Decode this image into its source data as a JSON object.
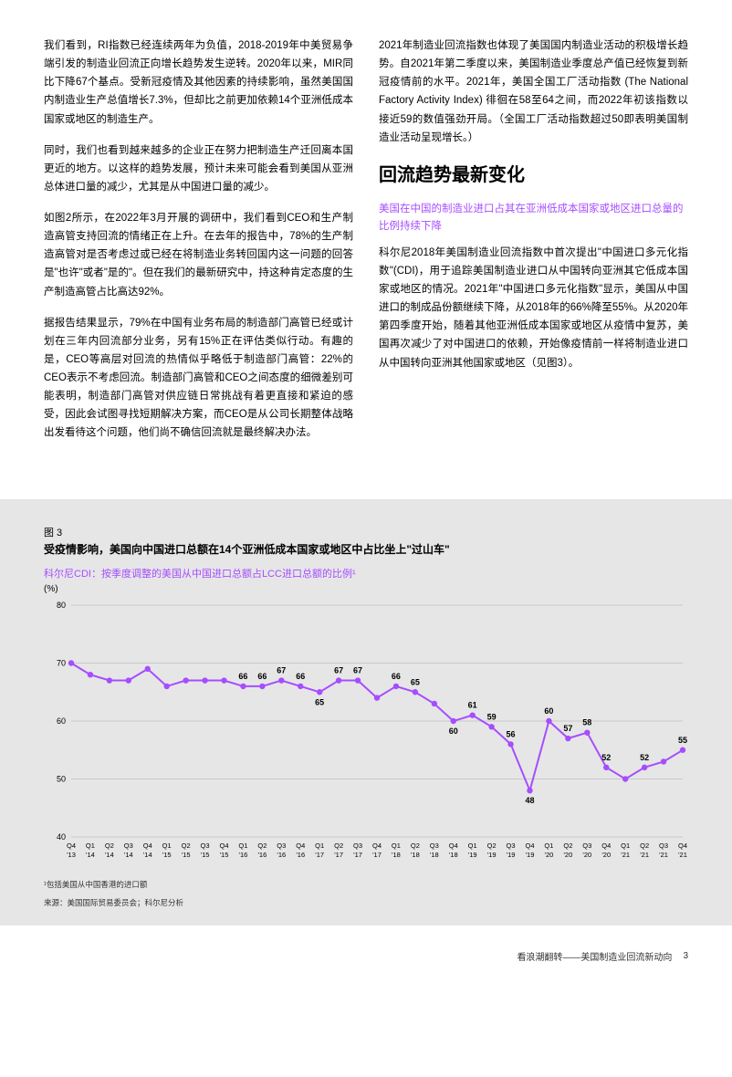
{
  "leftCol": {
    "p1": "我们看到，RI指数已经连续两年为负值，2018-2019年中美贸易争端引发的制造业回流正向增长趋势发生逆转。2020年以来，MIR同比下降67个基点。受新冠疫情及其他因素的持续影响，虽然美国国内制造业生产总值增长7.3%，但却比之前更加依赖14个亚洲低成本国家或地区的制造生产。",
    "p2": "同时，我们也看到越来越多的企业正在努力把制造生产迁回离本国更近的地方。以这样的趋势发展，预计未来可能会看到美国从亚洲总体进口量的减少，尤其是从中国进口量的减少。",
    "p3": "如图2所示，在2022年3月开展的调研中，我们看到CEO和生产制造高管支持回流的情绪正在上升。在去年的报告中，78%的生产制造高管对是否考虑过或已经在将制造业务转回国内这一问题的回答是\"也许\"或者\"是的\"。但在我们的最新研究中，持这种肯定态度的生产制造高管占比高达92%。",
    "p4": "据报告结果显示，79%在中国有业务布局的制造部门高管已经或计划在三年内回流部分业务，另有15%正在评估类似行动。有趣的是，CEO等高层对回流的热情似乎略低于制造部门高管：22%的CEO表示不考虑回流。制造部门高管和CEO之间态度的细微差别可能表明，制造部门高管对供应链日常挑战有着更直接和紧迫的感受，因此会试图寻找短期解决方案，而CEO是从公司长期整体战略出发看待这个问题，他们尚不确信回流就是最终解决办法。"
  },
  "rightCol": {
    "p1": "2021年制造业回流指数也体现了美国国内制造业活动的积极增长趋势。自2021年第二季度以来，美国制造业季度总产值已经恢复到新冠疫情前的水平。2021年，美国全国工厂活动指数 (The National Factory Activity Index) 徘徊在58至64之间，而2022年初该指数以接近59的数值强劲开局。（全国工厂活动指数超过50即表明美国制造业活动呈现增长。）",
    "h2": "回流趋势最新变化",
    "sub": "美国在中国的制造业进口占其在亚洲低成本国家或地区进口总量的比例持续下降",
    "p2": "科尔尼2018年美国制造业回流指数中首次提出\"中国进口多元化指数\"(CDI)，用于追踪美国制造业进口从中国转向亚洲其它低成本国家或地区的情况。2021年\"中国进口多元化指数\"显示，美国从中国进口的制成品份额继续下降，从2018年的66%降至55%。从2020年第四季度开始，随着其他亚洲低成本国家或地区从疫情中复苏，美国再次减少了对中国进口的依赖，开始像疫情前一样将制造业进口从中国转向亚洲其他国家或地区（见图3）。"
  },
  "chart": {
    "figLabel": "图 3",
    "title": "受疫情影响，美国向中国进口总额在14个亚洲低成本国家或地区中占比坐上\"过山车\"",
    "subtitle": "科尔尼CDI：按季度调整的美国从中国进口总额占LCC进口总额的比例¹",
    "unit": "(%)",
    "ylim": [
      40,
      80
    ],
    "yticks": [
      40,
      50,
      60,
      70,
      80
    ],
    "xlabels": [
      "Q4\n'13",
      "Q1\n'14",
      "Q2\n'14",
      "Q3\n'14",
      "Q4\n'14",
      "Q1\n'15",
      "Q2\n'15",
      "Q3\n'15",
      "Q4\n'15",
      "Q1\n'16",
      "Q2\n'16",
      "Q3\n'16",
      "Q4\n'16",
      "Q1\n'17",
      "Q2\n'17",
      "Q3\n'17",
      "Q4\n'17",
      "Q1\n'18",
      "Q2\n'18",
      "Q3\n'18",
      "Q4\n'18",
      "Q1\n'19",
      "Q2\n'19",
      "Q3\n'19",
      "Q4\n'19",
      "Q1\n'20",
      "Q2\n'20",
      "Q3\n'20",
      "Q4\n'20",
      "Q1\n'21",
      "Q2\n'21",
      "Q3\n'21",
      "Q4\n'21"
    ],
    "values": [
      70,
      68,
      67,
      67,
      69,
      66,
      67,
      67,
      67,
      66,
      66,
      67,
      66,
      65,
      67,
      67,
      64,
      66,
      65,
      63,
      60,
      61,
      59,
      56,
      48,
      60,
      57,
      58,
      52,
      50,
      52,
      53,
      55
    ],
    "dataLabels": {
      "9": "66",
      "10": "66",
      "11": "67",
      "12": "66",
      "13": "65",
      "14": "67",
      "15": "67",
      "17": "66",
      "18": "65",
      "20": "60",
      "21": "61",
      "22": "59",
      "23": "56",
      "24": "48",
      "25": "60",
      "26": "57",
      "27": "58",
      "28": "52",
      "30": "52",
      "32": "55"
    },
    "lineColor": "#a64dff",
    "markerFill": "#a64dff",
    "markerRadius": 3.2,
    "lineWidth": 2,
    "gridColor": "#bfbfbf",
    "bg": "#e6e6e6",
    "axisText": "#000",
    "footnote1": "¹包括美国从中国香港的进口额",
    "footnote2": "来源：美国国际贸易委员会；科尔尼分析"
  },
  "footer": {
    "title": "看浪潮翻转——美国制造业回流新动向",
    "page": "3"
  }
}
